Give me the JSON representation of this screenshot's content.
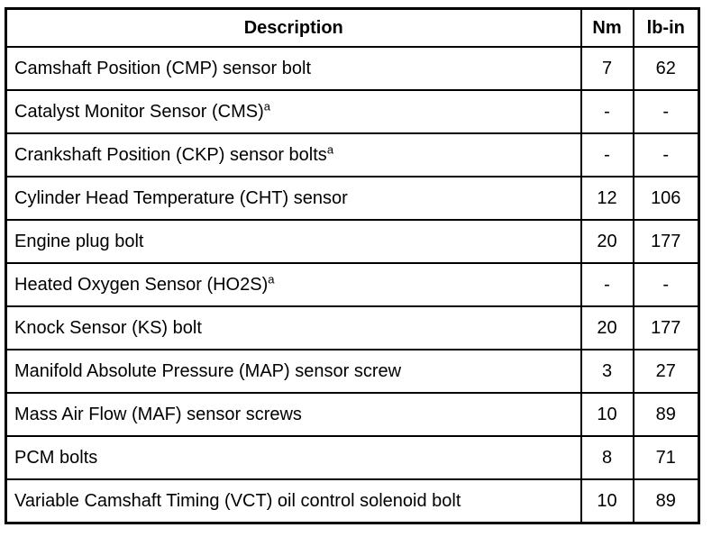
{
  "document": {
    "kind": "torque-specification-table",
    "colors": {
      "background": "#ffffff",
      "border": "#000000",
      "text": "#000000"
    }
  },
  "table": {
    "headers": {
      "description": "Description",
      "nm": "Nm",
      "lb_in": "lb-in"
    },
    "rows": [
      {
        "description": "Camshaft Position (CMP) sensor bolt",
        "footnote": "",
        "nm": "7",
        "lb_in": "62"
      },
      {
        "description": "Catalyst Monitor Sensor (CMS)",
        "footnote": "a",
        "nm": "-",
        "lb_in": "-"
      },
      {
        "description": "Crankshaft Position (CKP) sensor bolts",
        "footnote": "a",
        "nm": "-",
        "lb_in": "-"
      },
      {
        "description": "Cylinder Head Temperature (CHT) sensor",
        "footnote": "",
        "nm": "12",
        "lb_in": "106"
      },
      {
        "description": "Engine plug bolt",
        "footnote": "",
        "nm": "20",
        "lb_in": "177"
      },
      {
        "description": "Heated Oxygen Sensor (HO2S)",
        "footnote": "a",
        "nm": "-",
        "lb_in": "-"
      },
      {
        "description": "Knock Sensor (KS) bolt",
        "footnote": "",
        "nm": "20",
        "lb_in": "177"
      },
      {
        "description": "Manifold Absolute Pressure (MAP) sensor screw",
        "footnote": "",
        "nm": "3",
        "lb_in": "27"
      },
      {
        "description": "Mass Air Flow (MAF) sensor screws",
        "footnote": "",
        "nm": "10",
        "lb_in": "89"
      },
      {
        "description": "PCM bolts",
        "footnote": "",
        "nm": "8",
        "lb_in": "71"
      },
      {
        "description": "Variable Camshaft Timing (VCT) oil control solenoid bolt",
        "footnote": "",
        "nm": "10",
        "lb_in": "89"
      }
    ]
  },
  "chart_data": {
    "type": "table",
    "title": "",
    "columns": [
      "Description",
      "Nm",
      "lb-in"
    ],
    "rows": [
      [
        "Camshaft Position (CMP) sensor bolt",
        "7",
        "62"
      ],
      [
        "Catalyst Monitor Sensor (CMS)a",
        "-",
        "-"
      ],
      [
        "Crankshaft Position (CKP) sensor boltsa",
        "-",
        "-"
      ],
      [
        "Cylinder Head Temperature (CHT) sensor",
        "12",
        "106"
      ],
      [
        "Engine plug bolt",
        "20",
        "177"
      ],
      [
        "Heated Oxygen Sensor (HO2S)a",
        "-",
        "-"
      ],
      [
        "Knock Sensor (KS) bolt",
        "20",
        "177"
      ],
      [
        "Manifold Absolute Pressure (MAP) sensor screw",
        "3",
        "27"
      ],
      [
        "Mass Air Flow (MAF) sensor screws",
        "10",
        "89"
      ],
      [
        "PCM bolts",
        "8",
        "71"
      ],
      [
        "Variable Camshaft Timing (VCT) oil control solenoid bolt",
        "10",
        "89"
      ]
    ]
  }
}
